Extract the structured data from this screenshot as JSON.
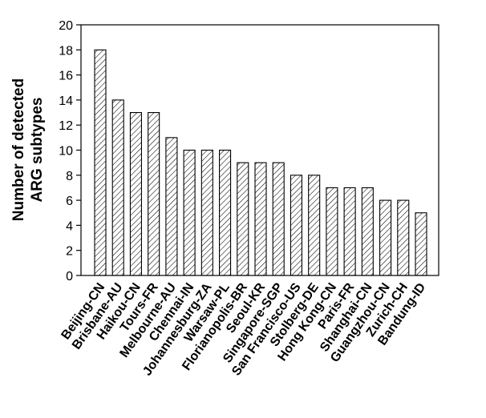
{
  "chart_data": {
    "type": "bar",
    "categories": [
      "Beijing-CN",
      "Brisbane-AU",
      "Haikou-CN",
      "Tours-FR",
      "Melbourne-AU",
      "Chennai-IN",
      "Johannesburg-ZA",
      "Warsaw-PL",
      "Florianopolis-BR",
      "Seoul-KR",
      "Singapore-SGP",
      "San Francisco-US",
      "Stolberg-DE",
      "Hong Kong-CN",
      "Paris-FR",
      "Shanghai-CN",
      "Guangzhou-CN",
      "Zurich-CH",
      "Bandung-ID"
    ],
    "values": [
      18,
      14,
      13,
      13,
      11,
      10,
      10,
      10,
      9,
      9,
      9,
      8,
      8,
      7,
      7,
      7,
      6,
      6,
      5
    ],
    "ylabel_lines": [
      "Number of detected",
      "ARG subtypes"
    ],
    "ylim": [
      0,
      20
    ],
    "yticks": [
      "0",
      "2",
      "4",
      "6",
      "8",
      "10",
      "12",
      "14",
      "16",
      "18",
      "20"
    ],
    "bar_fill": "hatched",
    "grid": false,
    "colors": {
      "bar_stroke": "#000000",
      "hatch": "#000000",
      "background": "#ffffff"
    }
  }
}
